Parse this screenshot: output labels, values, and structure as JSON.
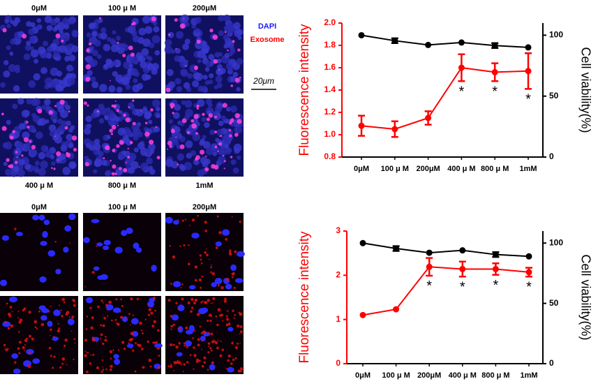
{
  "panels": [
    {
      "top_labels": [
        "0μM",
        "100 μ M",
        "200μM"
      ],
      "bottom_labels": [
        "400 μ M",
        "800 μ M",
        "1mM"
      ]
    },
    {
      "top_labels": [
        "0μM",
        "100 μ M",
        "200μM"
      ]
    }
  ],
  "stain_legend": {
    "dapi": "DAPI",
    "exosome": "Exosome"
  },
  "scale_bar": "20μm",
  "chart_data": [
    {
      "type": "line",
      "categories": [
        "0μM",
        "100 μ M",
        "200μM",
        "400 μ M",
        "800 μ M",
        "1mM"
      ],
      "ylabel": "Fluorescence intensity",
      "y2label": "Cell viability(%)",
      "ylim": [
        0.8,
        2.0
      ],
      "yticks": [
        0.8,
        {
          "value": 1,
          "label": "1.0"
        },
        1.2,
        1.4,
        1.6,
        1.8,
        {
          "value": 2,
          "label": "2.0"
        }
      ],
      "y2lim": [
        0,
        110
      ],
      "y2ticks": [
        0,
        50,
        100
      ],
      "series": [
        {
          "color": "#ff0000",
          "values": [
            1.08,
            1.05,
            1.15,
            1.6,
            1.56,
            1.57
          ],
          "errors": [
            0.09,
            0.07,
            0.06,
            0.12,
            0.08,
            0.16
          ]
        },
        {
          "color": "#000000",
          "axis": "y2",
          "values": [
            100,
            95.5,
            92,
            94,
            91.5,
            90
          ],
          "errors": [
            null,
            2,
            null,
            null,
            2,
            null
          ]
        }
      ],
      "annotations": [
        {
          "text": "*",
          "category": "400 μ M"
        },
        {
          "text": "*",
          "category": "800 μ M"
        },
        {
          "text": "*",
          "category": "1mM"
        }
      ]
    },
    {
      "type": "line",
      "categories": [
        "0μM",
        "100 μ M",
        "200μM",
        "400 μ M",
        "800 μ M",
        "1mM"
      ],
      "ylabel": "Fluorescence intensity",
      "y2label": "Cell viability(%)",
      "ylim": [
        0,
        3
      ],
      "yticks": [
        0,
        1,
        2,
        3
      ],
      "y2lim": [
        0,
        110
      ],
      "y2ticks": [
        0,
        50,
        100
      ],
      "series": [
        {
          "color": "#ff0000",
          "values": [
            1.1,
            1.23,
            2.19,
            2.14,
            2.14,
            2.07
          ],
          "errors": [
            null,
            null,
            0.2,
            0.17,
            0.13,
            0.1
          ]
        },
        {
          "color": "#000000",
          "axis": "y2",
          "values": [
            100,
            95.5,
            92,
            94,
            90.5,
            89
          ],
          "errors": [
            null,
            2,
            null,
            null,
            2,
            null
          ]
        }
      ],
      "annotations": [
        {
          "text": "*",
          "category": "200μM"
        },
        {
          "text": "*",
          "category": "400 μ M"
        },
        {
          "text": "*",
          "category": "800 μ M"
        },
        {
          "text": "*",
          "category": "1mM"
        }
      ]
    }
  ]
}
